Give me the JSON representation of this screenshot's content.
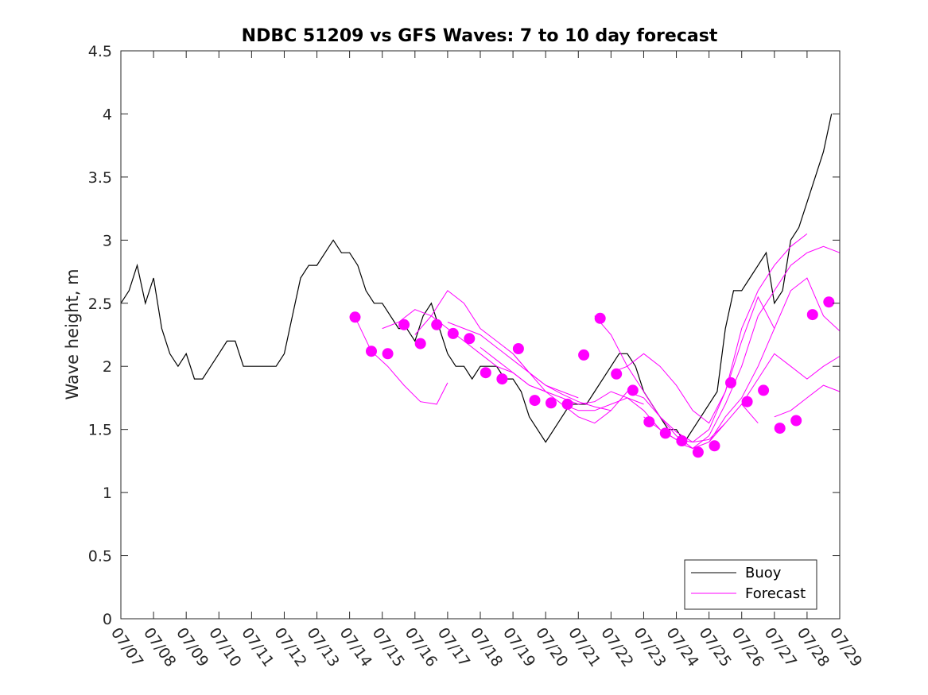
{
  "chart_data": {
    "type": "line",
    "title": "NDBC 51209 vs GFS Waves: 7 to 10 day forecast",
    "xlabel": "",
    "ylabel": "Wave height, m",
    "xlim": [
      "07/07",
      "07/29"
    ],
    "ylim": [
      0,
      4.5
    ],
    "x_ticks": [
      "07/07",
      "07/08",
      "07/09",
      "07/10",
      "07/11",
      "07/12",
      "07/13",
      "07/14",
      "07/15",
      "07/16",
      "07/17",
      "07/18",
      "07/19",
      "07/20",
      "07/21",
      "07/22",
      "07/23",
      "07/24",
      "07/25",
      "07/26",
      "07/27",
      "07/28",
      "07/29"
    ],
    "y_ticks": [
      "0",
      "0.5",
      "1",
      "1.5",
      "2",
      "2.5",
      "3",
      "3.5",
      "4",
      "4.5"
    ],
    "grid": false,
    "legend": {
      "location": "bottom-right",
      "entries": [
        "Buoy",
        "Forecast"
      ]
    },
    "colors": {
      "buoy": "#000000",
      "forecast": "#ff00ff"
    },
    "series": [
      {
        "name": "Buoy",
        "x": [
          "07/07 00:00",
          "07/07 06:00",
          "07/07 12:00",
          "07/07 18:00",
          "07/08 00:00",
          "07/08 06:00",
          "07/08 12:00",
          "07/08 18:00",
          "07/09 00:00",
          "07/09 06:00",
          "07/09 12:00",
          "07/09 18:00",
          "07/10 00:00",
          "07/10 06:00",
          "07/10 12:00",
          "07/10 18:00",
          "07/11 00:00",
          "07/11 06:00",
          "07/11 12:00",
          "07/11 18:00",
          "07/12 00:00",
          "07/12 06:00",
          "07/12 12:00",
          "07/12 18:00",
          "07/13 00:00",
          "07/13 06:00",
          "07/13 12:00",
          "07/13 18:00",
          "07/14 00:00",
          "07/14 06:00",
          "07/14 12:00",
          "07/14 18:00",
          "07/15 00:00",
          "07/15 06:00",
          "07/15 12:00",
          "07/15 18:00",
          "07/16 00:00",
          "07/16 06:00",
          "07/16 12:00",
          "07/16 18:00",
          "07/17 00:00",
          "07/17 06:00",
          "07/17 12:00",
          "07/17 18:00",
          "07/18 00:00",
          "07/18 06:00",
          "07/18 12:00",
          "07/18 18:00",
          "07/19 00:00",
          "07/19 06:00",
          "07/19 12:00",
          "07/19 18:00",
          "07/20 00:00",
          "07/20 06:00",
          "07/20 12:00",
          "07/20 18:00",
          "07/21 00:00",
          "07/21 06:00",
          "07/21 12:00",
          "07/21 18:00",
          "07/22 00:00",
          "07/22 06:00",
          "07/22 12:00",
          "07/22 18:00",
          "07/23 00:00",
          "07/23 06:00",
          "07/23 12:00",
          "07/23 18:00",
          "07/24 00:00",
          "07/24 06:00",
          "07/24 12:00",
          "07/24 18:00",
          "07/25 00:00",
          "07/25 06:00",
          "07/25 12:00",
          "07/25 18:00",
          "07/26 00:00",
          "07/26 06:00",
          "07/26 12:00",
          "07/26 18:00",
          "07/27 00:00",
          "07/27 06:00",
          "07/27 12:00",
          "07/27 18:00",
          "07/28 00:00",
          "07/28 06:00",
          "07/28 12:00",
          "07/28 18:00"
        ],
        "values": [
          2.5,
          2.6,
          2.8,
          2.5,
          2.7,
          2.3,
          2.1,
          2.0,
          2.1,
          1.9,
          1.9,
          2.0,
          2.1,
          2.2,
          2.2,
          2.0,
          2.0,
          2.0,
          2.0,
          2.0,
          2.1,
          2.4,
          2.7,
          2.8,
          2.8,
          2.9,
          3.0,
          2.9,
          2.9,
          2.8,
          2.6,
          2.5,
          2.5,
          2.4,
          2.3,
          2.3,
          2.2,
          2.4,
          2.5,
          2.3,
          2.1,
          2.0,
          2.0,
          1.9,
          2.0,
          2.0,
          2.0,
          1.9,
          1.9,
          1.8,
          1.6,
          1.5,
          1.4,
          1.5,
          1.6,
          1.7,
          1.7,
          1.7,
          1.8,
          1.9,
          2.0,
          2.1,
          2.1,
          2.0,
          1.8,
          1.7,
          1.6,
          1.5,
          1.5,
          1.4,
          1.5,
          1.6,
          1.7,
          1.8,
          2.3,
          2.6,
          2.6,
          2.7,
          2.8,
          2.9,
          2.5,
          2.6,
          3.0,
          3.1,
          3.3,
          3.5,
          3.7,
          4.0
        ]
      },
      {
        "name": "Forecast",
        "runs": [
          {
            "x": [
              "07/14 04:00",
              "07/14 16:00",
              "07/15 04:00",
              "07/15 16:00",
              "07/16 04:00",
              "07/16 16:00",
              "07/17 00:00"
            ],
            "values": [
              2.39,
              2.12,
              2.0,
              1.85,
              1.72,
              1.7,
              1.87
            ]
          },
          {
            "x": [
              "07/15 00:00",
              "07/15 12:00",
              "07/16 00:00",
              "07/16 12:00",
              "07/17 00:00",
              "07/17 12:00",
              "07/18 00:00",
              "07/18 12:00",
              "07/19 00:00",
              "07/19 12:00",
              "07/20 00:00"
            ],
            "values": [
              2.3,
              2.35,
              2.45,
              2.4,
              2.3,
              2.2,
              2.1,
              2.0,
              1.95,
              1.85,
              1.8
            ]
          },
          {
            "x": [
              "07/16 00:00",
              "07/16 12:00",
              "07/17 00:00",
              "07/17 12:00",
              "07/18 00:00",
              "07/18 12:00",
              "07/19 00:00",
              "07/19 12:00",
              "07/20 00:00",
              "07/20 12:00",
              "07/21 00:00"
            ],
            "values": [
              2.25,
              2.4,
              2.6,
              2.5,
              2.3,
              2.2,
              2.1,
              1.95,
              1.85,
              1.8,
              1.75
            ]
          },
          {
            "x": [
              "07/17 00:00",
              "07/17 12:00",
              "07/18 00:00",
              "07/18 12:00",
              "07/19 00:00",
              "07/19 12:00",
              "07/20 00:00",
              "07/20 12:00",
              "07/21 00:00",
              "07/21 12:00",
              "07/22 00:00"
            ],
            "values": [
              2.35,
              2.3,
              2.25,
              2.15,
              2.05,
              1.95,
              1.85,
              1.78,
              1.72,
              1.68,
              1.65
            ]
          },
          {
            "x": [
              "07/18 00:00",
              "07/18 12:00",
              "07/19 00:00",
              "07/19 12:00",
              "07/20 00:00",
              "07/20 12:00",
              "07/21 00:00",
              "07/21 12:00",
              "07/22 00:00",
              "07/22 12:00",
              "07/23 00:00"
            ],
            "values": [
              2.15,
              2.05,
              1.95,
              1.85,
              1.8,
              1.75,
              1.7,
              1.72,
              1.8,
              1.75,
              1.7
            ]
          },
          {
            "x": [
              "07/19 00:00",
              "07/19 12:00",
              "07/20 00:00",
              "07/20 12:00",
              "07/21 00:00",
              "07/21 12:00",
              "07/22 00:00",
              "07/22 12:00",
              "07/23 00:00",
              "07/23 12:00",
              "07/24 00:00"
            ],
            "values": [
              2.1,
              1.95,
              1.8,
              1.7,
              1.65,
              1.65,
              1.7,
              1.75,
              1.65,
              1.5,
              1.42
            ]
          },
          {
            "x": [
              "07/20 12:00",
              "07/21 00:00",
              "07/21 12:00",
              "07/22 00:00",
              "07/22 12:00",
              "07/23 00:00",
              "07/23 12:00",
              "07/24 00:00",
              "07/24 12:00",
              "07/25 00:00",
              "07/25 12:00"
            ],
            "values": [
              1.7,
              1.6,
              1.55,
              1.65,
              1.8,
              1.75,
              1.6,
              1.48,
              1.4,
              1.42,
              1.55
            ]
          },
          {
            "x": [
              "07/21 12:00",
              "07/22 00:00",
              "07/22 12:00",
              "07/23 00:00",
              "07/23 12:00",
              "07/24 00:00",
              "07/24 12:00",
              "07/25 00:00",
              "07/25 12:00",
              "07/26 00:00",
              "07/26 12:00"
            ],
            "values": [
              2.4,
              2.25,
              2.0,
              1.8,
              1.6,
              1.45,
              1.35,
              1.4,
              1.55,
              1.7,
              1.55
            ]
          },
          {
            "x": [
              "07/22 00:00",
              "07/22 12:00",
              "07/23 00:00",
              "07/23 12:00",
              "07/24 00:00",
              "07/24 12:00",
              "07/25 00:00",
              "07/25 12:00",
              "07/26 00:00",
              "07/26 12:00",
              "07/27 00:00"
            ],
            "values": [
              1.95,
              2.0,
              2.1,
              2.0,
              1.85,
              1.65,
              1.55,
              1.8,
              2.2,
              2.55,
              2.3
            ]
          },
          {
            "x": [
              "07/23 00:00",
              "07/23 12:00",
              "07/24 00:00",
              "07/24 12:00",
              "07/25 00:00",
              "07/25 12:00",
              "07/26 00:00",
              "07/26 12:00",
              "07/27 00:00",
              "07/27 12:00",
              "07/28 00:00"
            ],
            "values": [
              1.6,
              1.5,
              1.42,
              1.4,
              1.5,
              1.8,
              2.3,
              2.6,
              2.8,
              2.95,
              3.05
            ]
          },
          {
            "x": [
              "07/24 00:00",
              "07/24 12:00",
              "07/25 00:00",
              "07/25 12:00",
              "07/26 00:00",
              "07/26 12:00",
              "07/27 00:00",
              "07/27 12:00",
              "07/28 00:00",
              "07/28 12:00",
              "07/29 00:00"
            ],
            "values": [
              1.4,
              1.35,
              1.45,
              1.7,
              2.0,
              2.4,
              2.6,
              2.8,
              2.9,
              2.95,
              2.9
            ]
          },
          {
            "x": [
              "07/25 00:00",
              "07/25 12:00",
              "07/26 00:00",
              "07/26 12:00",
              "07/27 00:00",
              "07/27 12:00",
              "07/28 00:00",
              "07/28 12:00",
              "07/29 00:00"
            ],
            "values": [
              1.4,
              1.6,
              1.75,
              2.0,
              2.3,
              2.6,
              2.7,
              2.4,
              2.28
            ]
          },
          {
            "x": [
              "07/26 00:00",
              "07/26 12:00",
              "07/27 00:00",
              "07/27 12:00",
              "07/28 00:00",
              "07/28 12:00",
              "07/29 00:00"
            ],
            "values": [
              1.7,
              1.9,
              2.1,
              2.0,
              1.9,
              2.0,
              2.08
            ]
          },
          {
            "x": [
              "07/27 00:00",
              "07/27 12:00",
              "07/28 00:00",
              "07/28 12:00",
              "07/29 00:00"
            ],
            "values": [
              1.6,
              1.65,
              1.75,
              1.85,
              1.8
            ]
          }
        ],
        "markers": {
          "x": [
            "07/14 04:00",
            "07/14 16:00",
            "07/15 04:00",
            "07/15 16:00",
            "07/16 04:00",
            "07/16 16:00",
            "07/17 04:00",
            "07/17 16:00",
            "07/18 04:00",
            "07/18 16:00",
            "07/19 04:00",
            "07/19 16:00",
            "07/20 04:00",
            "07/20 16:00",
            "07/21 04:00",
            "07/21 16:00",
            "07/22 04:00",
            "07/22 16:00",
            "07/23 04:00",
            "07/23 16:00",
            "07/24 04:00",
            "07/24 16:00",
            "07/25 04:00",
            "07/25 16:00",
            "07/26 04:00",
            "07/26 16:00",
            "07/27 04:00",
            "07/27 16:00",
            "07/28 04:00",
            "07/28 16:00"
          ],
          "values": [
            2.39,
            2.12,
            2.1,
            2.33,
            2.18,
            2.33,
            2.26,
            2.22,
            1.95,
            1.9,
            2.14,
            1.73,
            1.71,
            1.7,
            2.09,
            2.38,
            1.94,
            1.81,
            1.56,
            1.47,
            1.41,
            1.32,
            1.37,
            1.87,
            1.72,
            1.81,
            1.51,
            1.57,
            2.41,
            2.51
          ]
        }
      }
    ]
  }
}
